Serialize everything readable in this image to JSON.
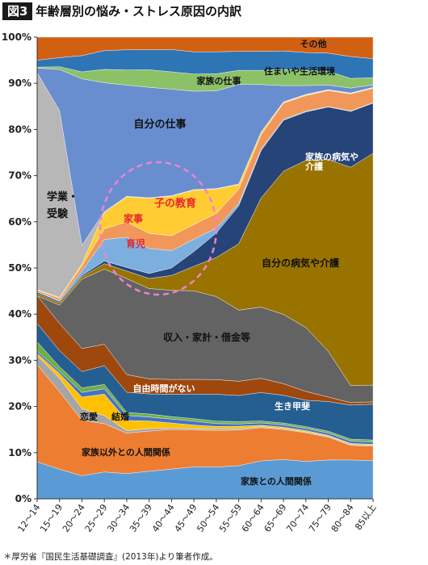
{
  "header": {
    "figure_label": "図3",
    "title": "年齢層別の悩み・ストレス原因の内訳"
  },
  "footnote": "＊厚労省『国民生活基礎調査』(2013年)より筆者作成。",
  "chart_data": {
    "type": "area",
    "stacked": true,
    "x": [
      "12～14",
      "15～19",
      "20～24",
      "25～29",
      "30～34",
      "35～39",
      "40～44",
      "45～49",
      "50～54",
      "55～59",
      "60～64",
      "65～69",
      "70～74",
      "75～79",
      "80～84",
      "85以上"
    ],
    "ylim": [
      0,
      100
    ],
    "yticks": [
      0,
      10,
      20,
      30,
      40,
      50,
      60,
      70,
      80,
      90,
      100
    ],
    "ytick_labels": [
      "0%",
      "10%",
      "20%",
      "30%",
      "40%",
      "50%",
      "60%",
      "70%",
      "80%",
      "90%",
      "100%"
    ],
    "grid": false,
    "series": [
      {
        "name": "家族との人間関係",
        "color": "#5b9bd5",
        "values": [
          8,
          6.5,
          5,
          5,
          5,
          5.5,
          6,
          6.5,
          6.5,
          7,
          8,
          8.5,
          8.5,
          8.5,
          8,
          8
        ]
      },
      {
        "name": "家族以外との人間関係",
        "color": "#ed7d31",
        "values": [
          21,
          17,
          12,
          9,
          8,
          8,
          8,
          7.5,
          7.5,
          7.5,
          7,
          6.5,
          6.5,
          5,
          3,
          3
        ]
      },
      {
        "name": "恋愛",
        "color": "#a5a5a5",
        "values": [
          2,
          3,
          2.5,
          1.5,
          0.5,
          0.5,
          0.3,
          0.3,
          0.3,
          0.3,
          0.2,
          0.2,
          0.2,
          0.2,
          0.2,
          0.2
        ]
      },
      {
        "name": "結婚",
        "color": "#ffc000",
        "values": [
          0.5,
          1,
          2.5,
          4,
          2,
          1.5,
          1,
          0.7,
          0.5,
          0.5,
          0.3,
          0.3,
          0.3,
          0.2,
          0.2,
          0.2
        ]
      },
      {
        "name": "",
        "color": "#4472c4",
        "values": [
          0.5,
          0.5,
          1,
          1,
          1,
          0.8,
          0.8,
          0.8,
          0.6,
          0.5,
          0.5,
          0.5,
          0.5,
          0.5,
          0.5,
          0.5
        ]
      },
      {
        "name": "",
        "color": "#70ad47",
        "values": [
          2,
          1,
          1,
          0.8,
          0.6,
          0.6,
          0.5,
          0.5,
          0.5,
          0.5,
          0.4,
          0.4,
          0.4,
          0.4,
          0.4,
          0.4
        ]
      },
      {
        "name": "生き甲斐",
        "color": "#255e91",
        "values": [
          4,
          3.5,
          3.5,
          3.5,
          4,
          4,
          4.5,
          5,
          5.5,
          5.5,
          6,
          6,
          6,
          6.5,
          7,
          7.5
        ]
      },
      {
        "name": "自由時間がない",
        "color": "#9e480e",
        "values": [
          6,
          6,
          5,
          4,
          3.5,
          3,
          3,
          3,
          3,
          3,
          3,
          2.5,
          2,
          1,
          0.5,
          0.5
        ]
      },
      {
        "name": "収入・家計・借金等",
        "color": "#636363",
        "values": [
          0,
          4,
          15,
          14,
          19,
          18,
          18,
          18,
          17,
          15,
          15,
          15,
          14.5,
          10,
          3.5,
          3.5
        ]
      },
      {
        "name": "自分の病気や介護",
        "color": "#997300",
        "values": [
          0.5,
          0.5,
          0.5,
          1,
          1.5,
          2,
          3,
          5,
          8,
          14,
          23,
          31,
          38,
          42,
          45,
          48.5
        ]
      },
      {
        "name": "家族の病気や介護",
        "color": "#264478",
        "values": [
          0.3,
          0.3,
          0.3,
          0.5,
          0.7,
          1,
          1.5,
          3,
          5,
          8,
          10,
          11,
          11,
          11.5,
          11.5,
          10.5
        ]
      },
      {
        "name": "育児",
        "color": "#7cafdd",
        "values": [
          0.1,
          0.2,
          1,
          4,
          6,
          5,
          3.5,
          2.5,
          1,
          0.5,
          0.3,
          0.2,
          0.2,
          0.1,
          0.1,
          0.1
        ]
      },
      {
        "name": "家事",
        "color": "#f1975a",
        "values": [
          0.3,
          0.5,
          1,
          2,
          3,
          3,
          3,
          3,
          3,
          3,
          3,
          3.5,
          3.5,
          3.5,
          3.5,
          3
        ]
      },
      {
        "name": "子の教育",
        "color": "#ffcd33",
        "values": [
          0.1,
          0.2,
          0.5,
          3,
          5,
          7,
          8,
          7,
          5,
          1,
          0.5,
          0.2,
          0.2,
          0.1,
          0.1,
          0.1
        ]
      },
      {
        "name": "学業・受験",
        "color": "#b7b7b7",
        "values": [
          47,
          41,
          4,
          0.2,
          0.1,
          0.1,
          0.1,
          0.1,
          0.1,
          0.1,
          0.1,
          0.1,
          0.1,
          0.1,
          0.1,
          0.1
        ]
      },
      {
        "name": "自分の仕事",
        "color": "#698ed0",
        "values": [
          1,
          9,
          36,
          24,
          22,
          22,
          21.5,
          20,
          20,
          21,
          10,
          3.5,
          2,
          1,
          1,
          0.5
        ]
      },
      {
        "name": "家族の仕事",
        "color": "#8cc168",
        "values": [
          0.2,
          0.6,
          1.5,
          2.5,
          3,
          3.5,
          3.5,
          3.5,
          3.5,
          3,
          3,
          3.5,
          3.5,
          3,
          2,
          1.5
        ]
      },
      {
        "name": "住まいや生活環境",
        "color": "#2e75b6",
        "values": [
          1.5,
          2,
          3.5,
          3.5,
          4,
          4,
          4.5,
          4.5,
          4.5,
          4,
          4,
          4,
          4,
          4,
          4.5,
          4
        ]
      },
      {
        "name": "その他",
        "color": "#d26012",
        "values": [
          5,
          4.5,
          4,
          2.5,
          2.5,
          2.5,
          2.5,
          3,
          3,
          3,
          3,
          3,
          3.5,
          3.5,
          4,
          4.5
        ]
      }
    ],
    "annotations": [
      {
        "text": "その他",
        "color": "#111111"
      },
      {
        "text": "住まいや生活環境",
        "color": "#111111"
      },
      {
        "text": "家族の仕事",
        "color": "#111111"
      },
      {
        "text": "自分の仕事",
        "color": "#111111"
      },
      {
        "text": "学業・",
        "color": "#111111"
      },
      {
        "text": "受験",
        "color": "#111111"
      },
      {
        "text": "子の教育",
        "color": "#e8262b"
      },
      {
        "text": "家事",
        "color": "#e8262b"
      },
      {
        "text": "育児",
        "color": "#e8262b"
      },
      {
        "text": "家族の病気や",
        "color": "#ffffff"
      },
      {
        "text": "介護",
        "color": "#ffffff"
      },
      {
        "text": "自分の病気や介護",
        "color": "#111111"
      },
      {
        "text": "収入・家計・借金等",
        "color": "#111111"
      },
      {
        "text": "自由時間がない",
        "color": "#ffffff"
      },
      {
        "text": "生き甲斐",
        "color": "#ffffff"
      },
      {
        "text": "恋愛",
        "color": "#111111"
      },
      {
        "text": "結婚",
        "color": "#111111"
      },
      {
        "text": "家族以外との人間関係",
        "color": "#111111"
      },
      {
        "text": "家族との人間関係",
        "color": "#111111"
      }
    ],
    "highlight": {
      "shape": "dashed-ellipse",
      "color": "#ee82d2",
      "around": [
        "子の教育",
        "家事",
        "育児"
      ]
    }
  }
}
